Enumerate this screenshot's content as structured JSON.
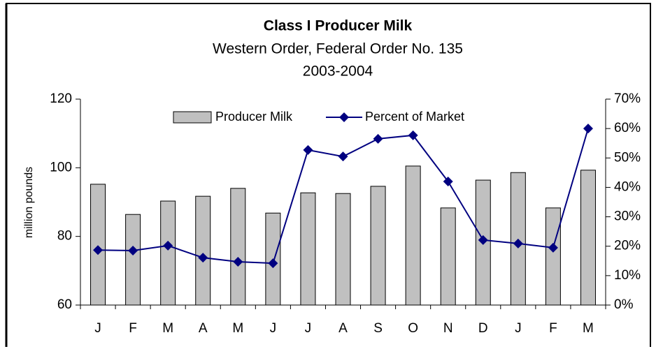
{
  "chart_data": {
    "type": "bar",
    "title": "Class I Producer Milk",
    "subtitle": "Western Order, Federal Order No. 135",
    "subtitle2": "2003-2004",
    "y_label": "million pounds",
    "categories": [
      "J",
      "F",
      "M",
      "A",
      "M",
      "J",
      "J",
      "A",
      "S",
      "O",
      "N",
      "D",
      "J",
      "F",
      "M"
    ],
    "series": [
      {
        "name": "Producer Milk",
        "type": "bar",
        "color": "#c0c0c0",
        "values": [
          95.2,
          86.4,
          90.3,
          91.7,
          94.0,
          86.8,
          92.7,
          92.5,
          94.6,
          100.5,
          88.3,
          96.4,
          98.6,
          88.3,
          99.3
        ]
      },
      {
        "name": "Percent of Market",
        "type": "line",
        "axis": "y2",
        "color": "#000080",
        "values": [
          18.7,
          18.5,
          20.2,
          16.1,
          14.7,
          14.2,
          52.7,
          50.5,
          56.5,
          57.7,
          42.0,
          22.1,
          20.9,
          19.5,
          60.0
        ]
      }
    ],
    "ylim": [
      60,
      120
    ],
    "yticks": [
      60,
      80,
      100,
      120
    ],
    "y2lim": [
      0,
      70
    ],
    "y2ticks": [
      {
        "value": 0,
        "label": "0%"
      },
      {
        "value": 10,
        "label": "10%"
      },
      {
        "value": 20,
        "label": "20%"
      },
      {
        "value": 30,
        "label": "30%"
      },
      {
        "value": 40,
        "label": "40%"
      },
      {
        "value": 50,
        "label": "50%"
      },
      {
        "value": 60,
        "label": "60%"
      },
      {
        "value": 70,
        "label": "70%"
      }
    ],
    "legend": "top"
  }
}
